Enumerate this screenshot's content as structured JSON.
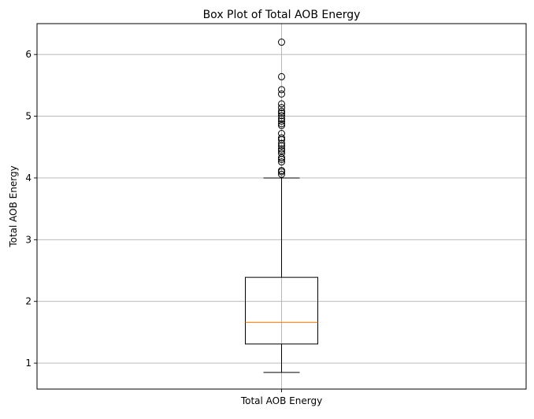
{
  "chart_data": {
    "type": "box",
    "title": "Box Plot of Total AOB Energy",
    "xlabel": "",
    "ylabel": "Total AOB Energy",
    "categories": [
      "Total AOB Energy"
    ],
    "ylim": [
      0.58,
      6.5
    ],
    "yticks": [
      1,
      2,
      3,
      4,
      5,
      6
    ],
    "grid": true,
    "boxes": [
      {
        "label": "Total AOB Energy",
        "whisker_low": 0.85,
        "q1": 1.31,
        "median": 1.66,
        "q3": 2.39,
        "whisker_high": 4.0,
        "outliers": [
          4.06,
          4.1,
          4.12,
          4.26,
          4.3,
          4.33,
          4.4,
          4.44,
          4.47,
          4.52,
          4.56,
          4.62,
          4.65,
          4.72,
          4.85,
          4.88,
          4.92,
          4.96,
          5.01,
          5.05,
          5.08,
          5.14,
          5.2,
          5.36,
          5.43,
          5.64,
          6.2
        ]
      }
    ],
    "colors": {
      "box": "#000000",
      "median": "#ff7f0e",
      "grid": "#b0b0b0",
      "flier_edge": "#000000"
    }
  }
}
